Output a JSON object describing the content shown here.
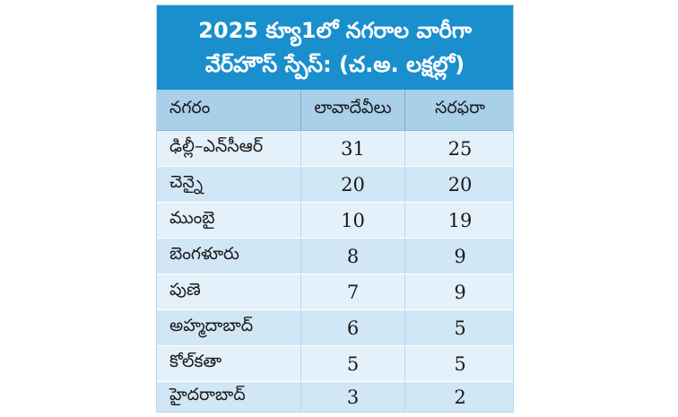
{
  "title": {
    "line1": "2025 క్యూ1లో నగరాల వారీగా",
    "line2": "వేర్‌హౌస్ స్పేస్: (చ.అ. లక్షల్లో)"
  },
  "columns": [
    "నగరం",
    "లావాదేవీలు",
    "సరఫరా"
  ],
  "rows": [
    {
      "city": "ఢిల్లీ–ఎన్‌సీఆర్",
      "transactions": "31",
      "supply": "25"
    },
    {
      "city": "చెన్నై",
      "transactions": "20",
      "supply": "20"
    },
    {
      "city": "ముంబై",
      "transactions": "10",
      "supply": "19"
    },
    {
      "city": "బెంగళూరు",
      "transactions": "8",
      "supply": "9"
    },
    {
      "city": "పుణె",
      "transactions": "7",
      "supply": "9"
    },
    {
      "city": "అహ్మదాబాద్",
      "transactions": "6",
      "supply": "5"
    },
    {
      "city": "కోల్‌కతా",
      "transactions": "5",
      "supply": "5"
    },
    {
      "city": "హైదరాబాద్",
      "transactions": "3",
      "supply": "2"
    }
  ],
  "colors": {
    "title_bg": "#1a8fcd",
    "header_bg": "#a9cfe9",
    "row_light": "#e4f1fb",
    "row_dark": "#d2e7f6"
  }
}
